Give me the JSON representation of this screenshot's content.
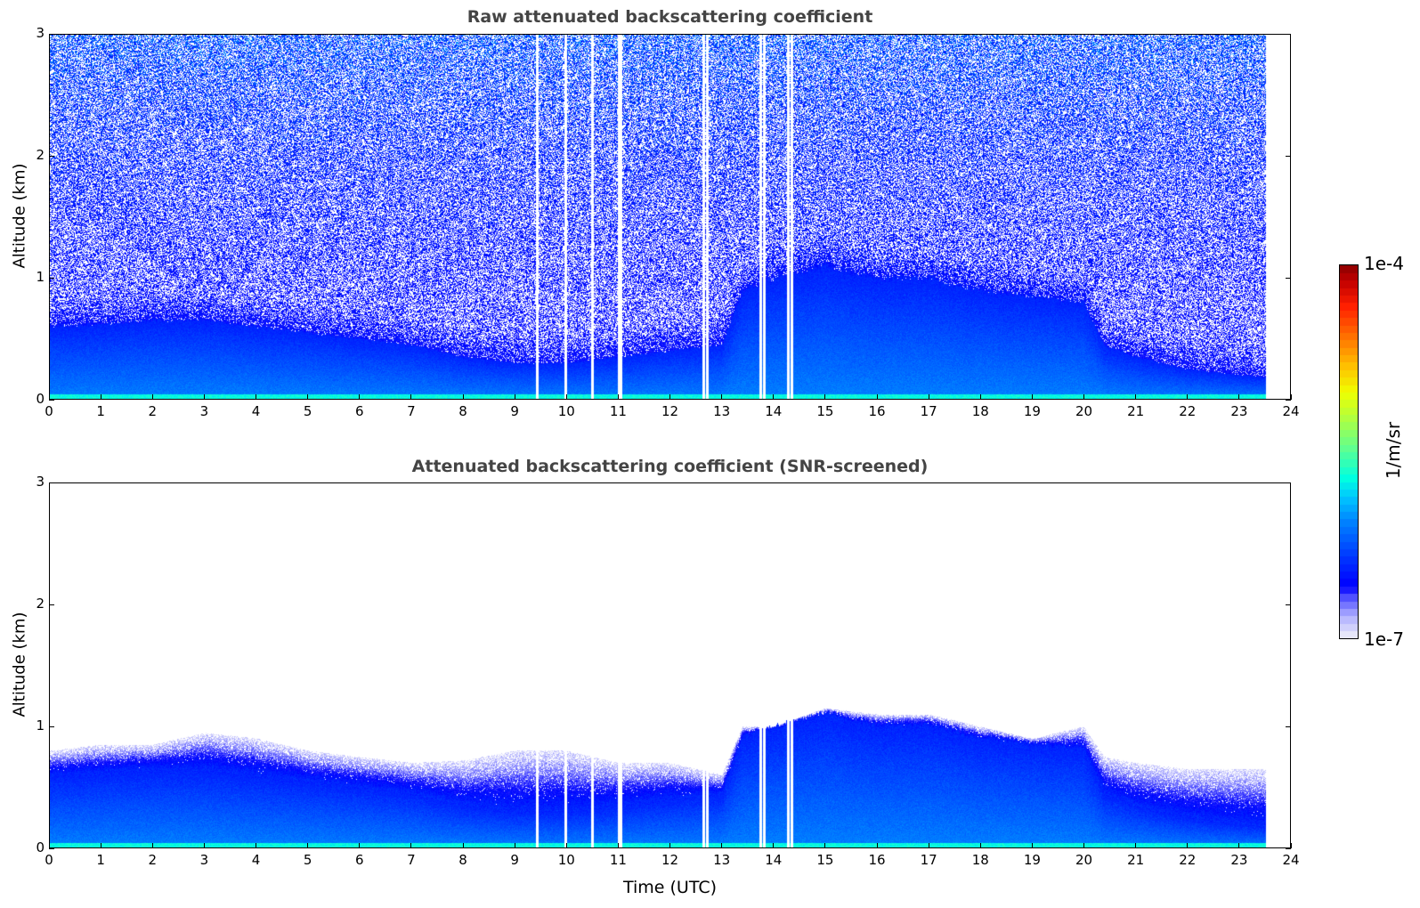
{
  "chart_data": [
    {
      "type": "heatmap",
      "title": "Raw attenuated backscattering coefficient",
      "xlabel": "",
      "ylabel": "Altitude (km)",
      "xlim": [
        0,
        24
      ],
      "ylim": [
        0,
        3
      ],
      "xticks": [
        "0",
        "1",
        "2",
        "3",
        "4",
        "5",
        "6",
        "7",
        "8",
        "9",
        "10",
        "11",
        "12",
        "13",
        "14",
        "15",
        "16",
        "17",
        "18",
        "19",
        "20",
        "21",
        "22",
        "23",
        "24"
      ],
      "yticks": [
        "0",
        "1",
        "2",
        "3"
      ],
      "data_end_hour": 23.52,
      "missing_profile_hours": [
        9.42,
        9.97,
        10.5,
        11.0,
        11.05,
        12.65,
        12.72,
        13.75,
        13.82,
        14.28,
        14.35
      ],
      "layer_top_km": {
        "hours": [
          0,
          1,
          2,
          3,
          4,
          5,
          6,
          7,
          8,
          9,
          10,
          11,
          12,
          13,
          13.4,
          14,
          15,
          16,
          17,
          18,
          19,
          20,
          20.4,
          21,
          22,
          23,
          23.52
        ],
        "values": [
          0.6,
          0.62,
          0.65,
          0.65,
          0.6,
          0.55,
          0.5,
          0.45,
          0.35,
          0.3,
          0.3,
          0.35,
          0.4,
          0.45,
          0.9,
          1.0,
          1.1,
          1.0,
          1.0,
          0.9,
          0.85,
          0.8,
          0.45,
          0.35,
          0.25,
          0.2,
          0.18
        ]
      },
      "noise": true
    },
    {
      "type": "heatmap",
      "title": "Attenuated backscattering coefficient (SNR-screened)",
      "xlabel": "Time (UTC)",
      "ylabel": "Altitude (km)",
      "xlim": [
        0,
        24
      ],
      "ylim": [
        0,
        3
      ],
      "xticks": [
        "0",
        "1",
        "2",
        "3",
        "4",
        "5",
        "6",
        "7",
        "8",
        "9",
        "10",
        "11",
        "12",
        "13",
        "14",
        "15",
        "16",
        "17",
        "18",
        "19",
        "20",
        "21",
        "22",
        "23",
        "24"
      ],
      "yticks": [
        "0",
        "1",
        "2",
        "3"
      ],
      "data_end_hour": 23.52,
      "missing_profile_hours": [
        9.42,
        9.97,
        10.5,
        11.0,
        11.05,
        12.65,
        12.72,
        13.75,
        13.82,
        14.28,
        14.35
      ],
      "layer_top_km": {
        "hours": [
          0,
          1,
          2,
          3,
          4,
          5,
          6,
          7,
          8,
          9,
          10,
          11,
          12,
          13,
          13.4,
          14,
          15,
          16,
          17,
          18,
          19,
          20,
          20.4,
          21,
          22,
          23,
          23.52
        ],
        "values": [
          0.6,
          0.62,
          0.65,
          0.65,
          0.6,
          0.55,
          0.5,
          0.45,
          0.35,
          0.3,
          0.3,
          0.35,
          0.4,
          0.45,
          0.9,
          1.0,
          1.1,
          1.0,
          1.0,
          0.9,
          0.85,
          0.8,
          0.45,
          0.35,
          0.25,
          0.2,
          0.18
        ]
      },
      "screened_top_km": {
        "hours": [
          0,
          1,
          2,
          3,
          4,
          5,
          6,
          7,
          8,
          9,
          10,
          11,
          12,
          13,
          13.4,
          14,
          15,
          16,
          17,
          18,
          19,
          20,
          20.4,
          21,
          22,
          23,
          23.52
        ],
        "values": [
          0.8,
          0.85,
          0.85,
          0.95,
          0.9,
          0.8,
          0.75,
          0.7,
          0.72,
          0.8,
          0.8,
          0.7,
          0.7,
          0.6,
          1.0,
          1.0,
          1.15,
          1.1,
          1.1,
          1.0,
          0.9,
          1.0,
          0.75,
          0.7,
          0.65,
          0.65,
          0.65
        ]
      },
      "noise": false
    }
  ],
  "colorbar": {
    "label": "1/m/sr",
    "min_label": "1e-7",
    "max_label": "1e-4",
    "log_range": [
      -7,
      -4
    ],
    "stops": [
      [
        0,
        "#e6e6fa"
      ],
      [
        0.05,
        "#b0b0ff"
      ],
      [
        0.1,
        "#5050ff"
      ],
      [
        0.13,
        "#0000ff"
      ],
      [
        0.2,
        "#0030ff"
      ],
      [
        0.3,
        "#0080ff"
      ],
      [
        0.37,
        "#00c8ff"
      ],
      [
        0.42,
        "#00ffe0"
      ],
      [
        0.5,
        "#60ff90"
      ],
      [
        0.58,
        "#b0ff40"
      ],
      [
        0.65,
        "#f0ff00"
      ],
      [
        0.72,
        "#ffc000"
      ],
      [
        0.8,
        "#ff7000"
      ],
      [
        0.88,
        "#ff2000"
      ],
      [
        0.95,
        "#c00000"
      ],
      [
        1,
        "#800000"
      ]
    ]
  }
}
